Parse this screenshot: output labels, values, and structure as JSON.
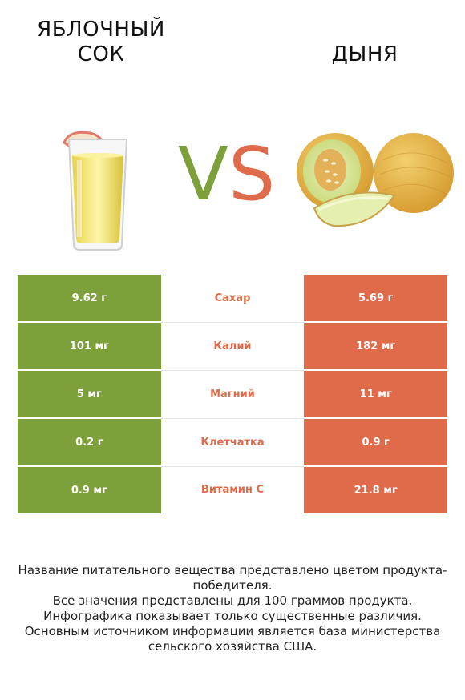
{
  "header": {
    "left_title": "ЯБЛОЧНЫЙ СОК",
    "right_title": "ДЫНЯ",
    "vs_v": "V",
    "vs_s": "S"
  },
  "colors": {
    "left": "#7da03a",
    "right": "#e06b4b"
  },
  "rows": [
    {
      "left": "9.62 г",
      "nutrient": "Сахар",
      "right": "5.69 г"
    },
    {
      "left": "101 мг",
      "nutrient": "Калий",
      "right": "182 мг"
    },
    {
      "left": "5 мг",
      "nutrient": "Магний",
      "right": "11 мг"
    },
    {
      "left": "0.2 г",
      "nutrient": "Клетчатка",
      "right": "0.9 г"
    },
    {
      "left": "0.9 мг",
      "nutrient": "Витамин C",
      "right": "21.8 мг"
    }
  ],
  "notes": [
    "Название питательного вещества представлено цветом продукта-победителя.",
    "Все значения представлены для 100 граммов продукта.",
    "Инфографика показывает только существенные различия.",
    "Основным источником информации является база министерства сельского хозяйства США."
  ]
}
